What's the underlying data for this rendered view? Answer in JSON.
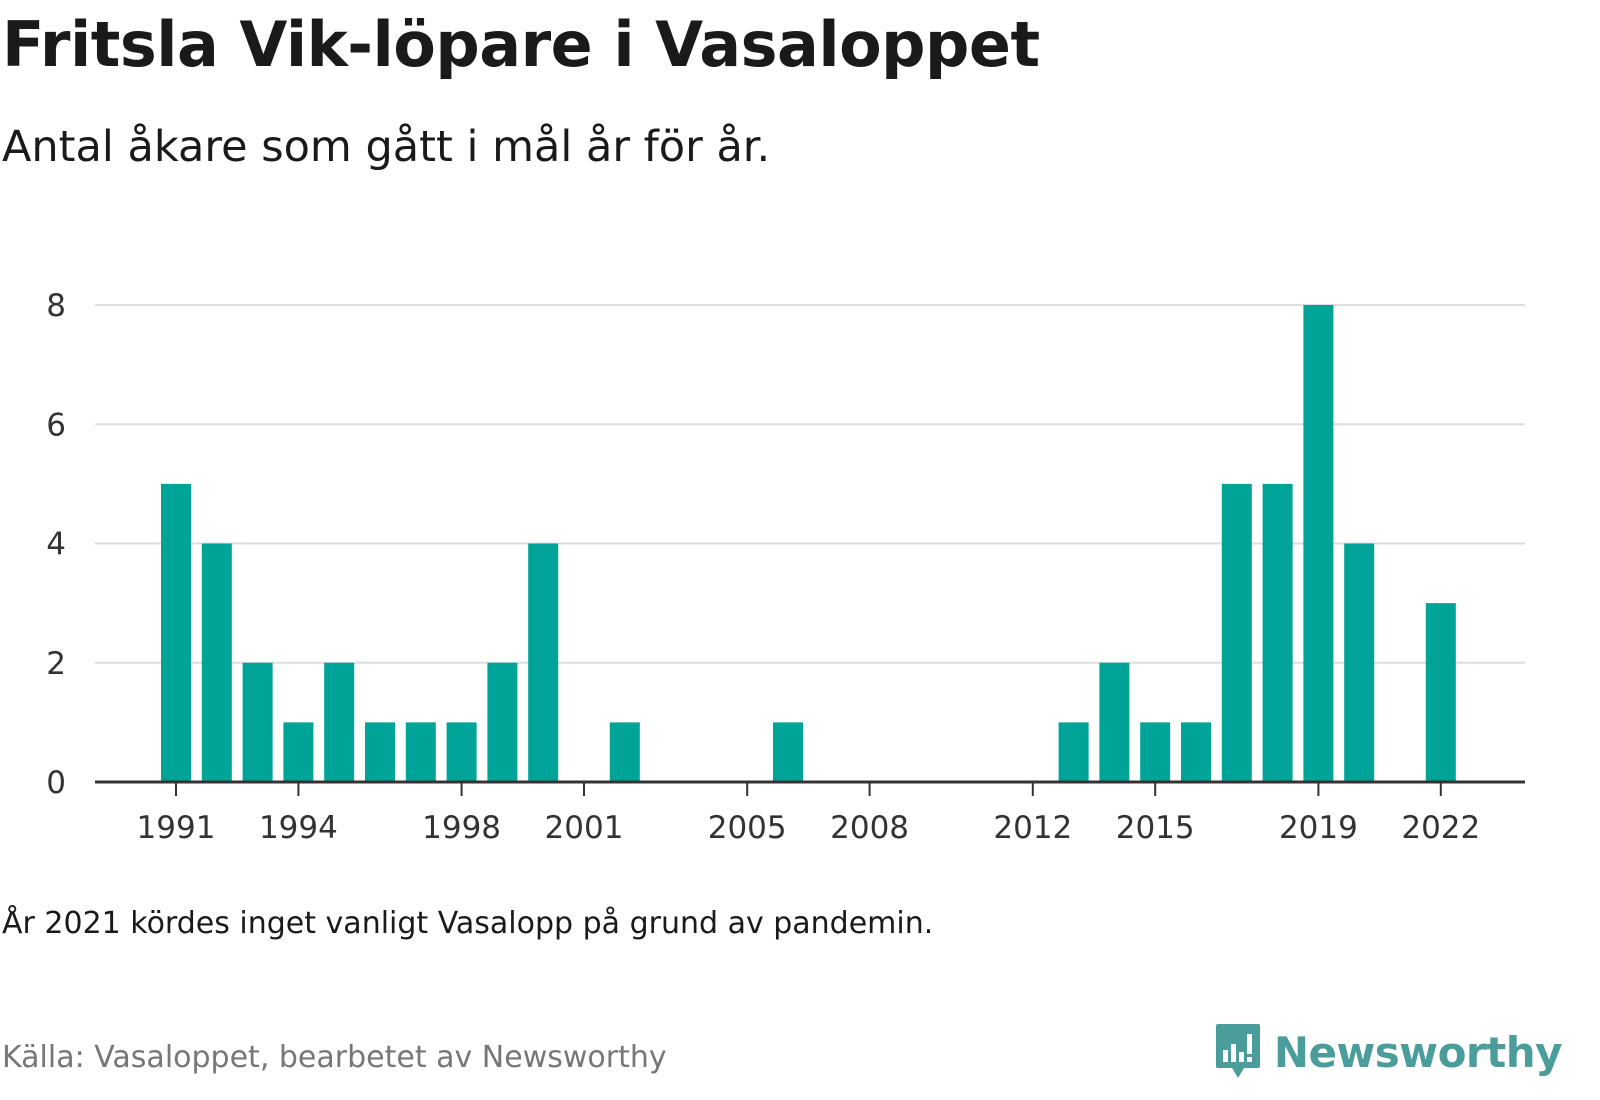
{
  "title": "Fritsla Vik-löpare i Vasaloppet",
  "subtitle": "Antal åkare som gått i mål år för år.",
  "note": "År 2021 kördes inget vanligt Vasalopp på grund av pandemin.",
  "source": "Källa: Vasaloppet, bearbetet av Newsworthy",
  "brand": {
    "name": "Newsworthy",
    "icon": "newsworthy-logo-icon"
  },
  "colors": {
    "bar": "#00a398",
    "grid": "#dddddd",
    "axis": "#333333",
    "brand": "#4a9d9a"
  },
  "chart_data": {
    "type": "bar",
    "categories": [
      1991,
      1992,
      1993,
      1994,
      1995,
      1996,
      1997,
      1998,
      1999,
      2000,
      2001,
      2002,
      2003,
      2004,
      2005,
      2006,
      2007,
      2008,
      2009,
      2010,
      2011,
      2012,
      2013,
      2014,
      2015,
      2016,
      2017,
      2018,
      2019,
      2020,
      2021,
      2022
    ],
    "values": [
      5,
      4,
      2,
      1,
      2,
      1,
      1,
      1,
      2,
      4,
      0,
      1,
      0,
      0,
      0,
      1,
      0,
      0,
      0,
      0,
      0,
      0,
      1,
      2,
      1,
      1,
      5,
      5,
      8,
      4,
      0,
      3
    ],
    "x_tick_labels": [
      "1991",
      "1994",
      "1998",
      "2001",
      "2005",
      "2008",
      "2012",
      "2015",
      "2019",
      "2022"
    ],
    "y_ticks": [
      0,
      2,
      4,
      6,
      8
    ],
    "ylim": [
      0,
      8
    ],
    "grid": true,
    "legend": "none"
  }
}
